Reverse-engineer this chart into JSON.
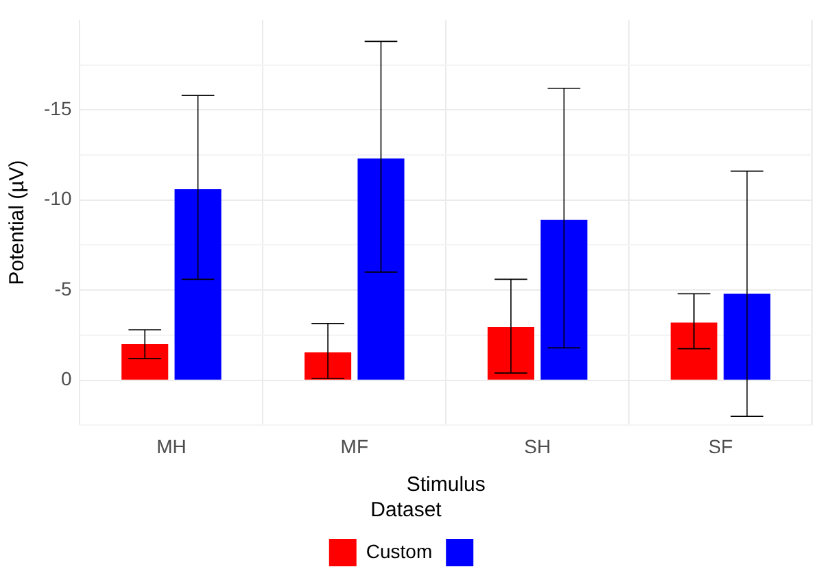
{
  "chart_data": {
    "type": "bar",
    "xlabel": "Stimulus",
    "ylabel": "Potential (µV)",
    "legend_title": "Dataset",
    "categories": [
      "MH",
      "MF",
      "SH",
      "SF"
    ],
    "series": [
      {
        "name": "Custom",
        "color": "#ff0000",
        "values": [
          -2.0,
          -1.55,
          -2.95,
          -3.2
        ],
        "errors": [
          [
            -2.8,
            -1.2
          ],
          [
            -3.15,
            -0.1
          ],
          [
            -5.6,
            -0.4
          ],
          [
            -4.8,
            -1.75
          ]
        ]
      },
      {
        "color": "#0000ff",
        "values": [
          -10.6,
          -12.3,
          -8.9,
          -4.8
        ],
        "errors": [
          [
            -15.8,
            -5.6
          ],
          [
            -18.8,
            -6.0
          ],
          [
            -16.2,
            -1.8
          ],
          [
            -11.6,
            2.0
          ]
        ]
      }
    ],
    "ylim": [
      2.5,
      -20
    ],
    "yticks": [
      {
        "value": 2.5,
        "label": null
      },
      0,
      {
        "value": -2.5,
        "label": null
      },
      -5,
      {
        "value": -7.5,
        "label": null
      },
      -10,
      {
        "value": -12.5,
        "label": null
      },
      -15,
      {
        "value": -17.5,
        "label": null
      }
    ],
    "grid": true,
    "legend": "bottom"
  }
}
